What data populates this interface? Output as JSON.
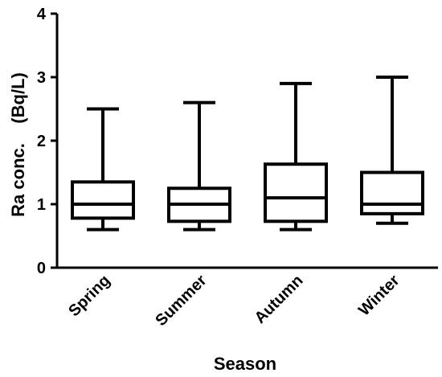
{
  "chart_data": {
    "type": "box",
    "xlabel": "Season",
    "ylabel": "Ra conc.    (Bq/L)",
    "ylim": [
      0,
      4
    ],
    "yticks": [
      0,
      1,
      2,
      3,
      4
    ],
    "categories": [
      "Spring",
      "Summer",
      "Autumn",
      "Winter"
    ],
    "boxes": [
      {
        "category": "Spring",
        "min": 0.6,
        "q1": 0.78,
        "median": 1.0,
        "q3": 1.35,
        "max": 2.5
      },
      {
        "category": "Summer",
        "min": 0.6,
        "q1": 0.73,
        "median": 1.0,
        "q3": 1.25,
        "max": 2.6
      },
      {
        "category": "Autumn",
        "min": 0.6,
        "q1": 0.73,
        "median": 1.1,
        "q3": 1.63,
        "max": 2.9
      },
      {
        "category": "Winter",
        "min": 0.7,
        "q1": 0.85,
        "median": 1.0,
        "q3": 1.5,
        "max": 3.0
      }
    ],
    "grid": false,
    "legend": "none",
    "colors": {
      "stroke": "#000000",
      "fill": "#ffffff"
    }
  }
}
